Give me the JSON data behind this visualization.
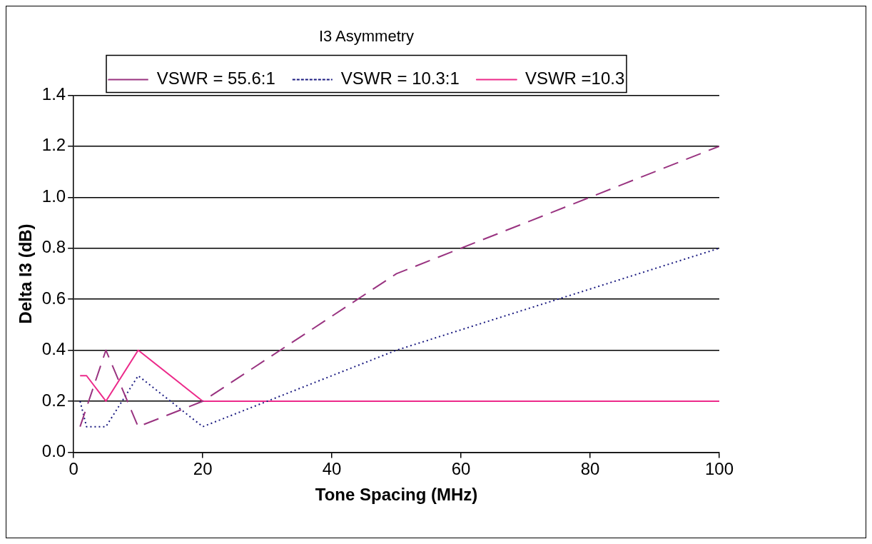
{
  "chart_data": {
    "type": "line",
    "title": "I3 Asymmetry",
    "xlabel": "Tone Spacing (MHz)",
    "ylabel": "Delta I3 (dB)",
    "xlim": [
      0,
      100
    ],
    "xticks": [
      0,
      20,
      40,
      60,
      80,
      100
    ],
    "ylim": [
      0,
      1.4
    ],
    "yticks": [
      {
        "value": 0,
        "label": "0.0"
      },
      {
        "value": 0.2,
        "label": "0.2"
      },
      {
        "value": 0.4,
        "label": "0.4"
      },
      {
        "value": 0.6,
        "label": "0.6"
      },
      {
        "value": 0.8,
        "label": "0.8"
      },
      {
        "value": 1.0,
        "label": "1.0"
      },
      {
        "value": 1.2,
        "label": "1.2"
      },
      {
        "value": 1.4,
        "label": "1.4"
      }
    ],
    "grid": "y",
    "legend": "top",
    "marker": "none",
    "series": [
      {
        "name": "VSWR = 55.6:1",
        "color": "#993380",
        "line_style": "dashed",
        "x": [
          1,
          5,
          10,
          20,
          50,
          100
        ],
        "values": [
          0.1,
          0.4,
          0.1,
          0.2,
          0.7,
          1.2
        ]
      },
      {
        "name": "VSWR = 10.3:1",
        "color": "#1a1a80",
        "line_style": "dotted",
        "x": [
          1,
          2,
          5,
          10,
          20,
          50,
          100
        ],
        "values": [
          0.2,
          0.1,
          0.1,
          0.3,
          0.1,
          0.4,
          0.8
        ]
      },
      {
        "name": "VSWR =10.3",
        "color": "#ec2a8a",
        "line_style": "solid",
        "x": [
          1,
          2,
          5,
          10,
          20,
          50,
          100
        ],
        "values": [
          0.3,
          0.3,
          0.2,
          0.4,
          0.2,
          0.2,
          0.2
        ]
      }
    ]
  }
}
